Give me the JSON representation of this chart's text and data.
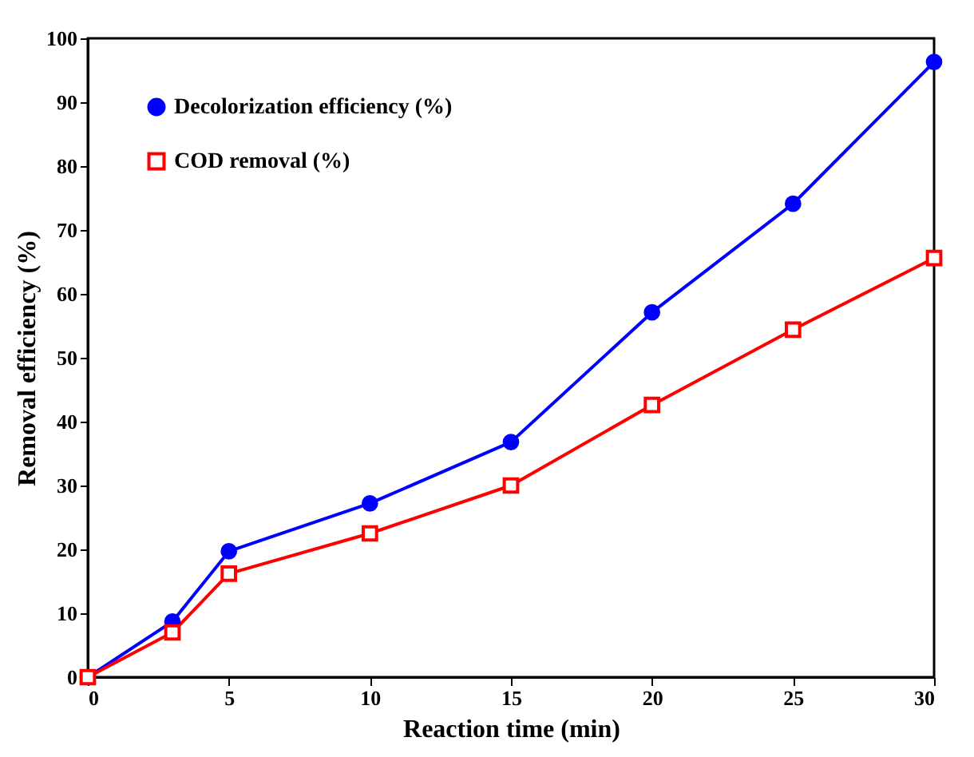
{
  "chart_data": {
    "type": "line",
    "xlabel": "Reaction time (min)",
    "ylabel": "Removal efficiency (%)",
    "x": [
      0,
      3,
      5,
      10,
      15,
      20,
      25,
      30
    ],
    "series": [
      {
        "name": "Decolorization efficiency (%)",
        "color": "#0000ff",
        "marker": "circle",
        "values": [
          0,
          8.7,
          19.7,
          27.2,
          36.8,
          57.1,
          74.1,
          96.3
        ]
      },
      {
        "name": "COD removal (%)",
        "color": "#ff0000",
        "marker": "square",
        "values": [
          0,
          7.0,
          16.2,
          22.5,
          30.0,
          42.6,
          54.4,
          65.6
        ]
      }
    ],
    "xlim": [
      0,
      30
    ],
    "xticks": [
      0,
      5,
      10,
      15,
      20,
      25,
      30
    ],
    "ylim": [
      0,
      100
    ],
    "yticks": [
      0,
      10,
      20,
      30,
      40,
      50,
      60,
      70,
      80,
      90,
      100
    ],
    "grid": false,
    "legend": "top left",
    "line_style": "solid"
  }
}
